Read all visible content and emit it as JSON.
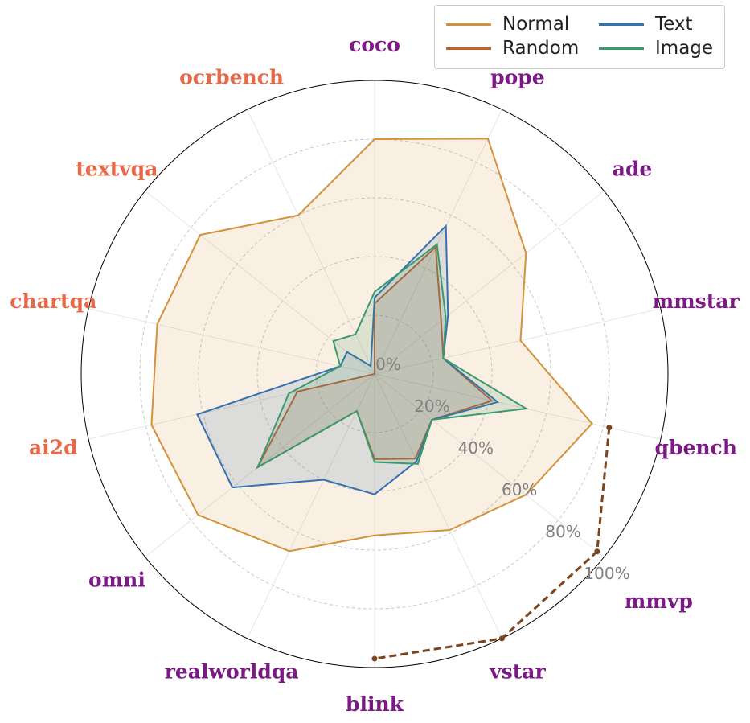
{
  "chart_data": {
    "type": "radar",
    "categories": [
      "coco",
      "pope",
      "ade",
      "mmstar",
      "qbench",
      "mmvp",
      "vstar",
      "blink",
      "realworldqa",
      "omni",
      "ai2d",
      "chartqa",
      "textvqa",
      "ocrbench"
    ],
    "category_colors": [
      "#7b1a84",
      "#7b1a84",
      "#7b1a84",
      "#7b1a84",
      "#7b1a84",
      "#7b1a84",
      "#7b1a84",
      "#7b1a84",
      "#7b1a84",
      "#7b1a84",
      "#e8694a",
      "#e8694a",
      "#e8694a",
      "#e8694a"
    ],
    "rlim": [
      0,
      100
    ],
    "radial_ticks": [
      "0%",
      "20%",
      "40%",
      "60%",
      "80%",
      "100%"
    ],
    "radial_tick_values": [
      0,
      20,
      40,
      60,
      80,
      100
    ],
    "grid": true,
    "legend_position": "top-right",
    "series": [
      {
        "name": "Normal",
        "color": "#d4923a",
        "values": [
          80,
          89,
          66,
          51,
          76,
          66,
          59,
          55,
          67,
          77,
          78,
          76,
          76,
          60
        ]
      },
      {
        "name": "Random",
        "color": "#cc5f2a",
        "values": [
          24,
          48,
          29,
          24,
          41,
          25,
          32,
          29,
          14,
          51,
          27,
          0,
          0,
          0
        ]
      },
      {
        "name": "Text",
        "color": "#3570b0",
        "values": [
          26,
          56,
          32,
          24,
          43,
          25,
          33,
          41,
          40,
          62,
          62,
          12,
          12,
          3
        ]
      },
      {
        "name": "Image",
        "color": "#3a9a6e",
        "values": [
          28,
          49,
          31,
          24,
          53,
          25,
          34,
          30,
          14,
          51,
          30,
          12,
          18,
          15
        ]
      }
    ],
    "reference_line": {
      "color": "#7b4520",
      "style": "dashed",
      "categories": [
        "qbench",
        "mmvp",
        "vstar",
        "blink"
      ],
      "values": [
        82,
        97,
        100,
        97
      ]
    }
  }
}
